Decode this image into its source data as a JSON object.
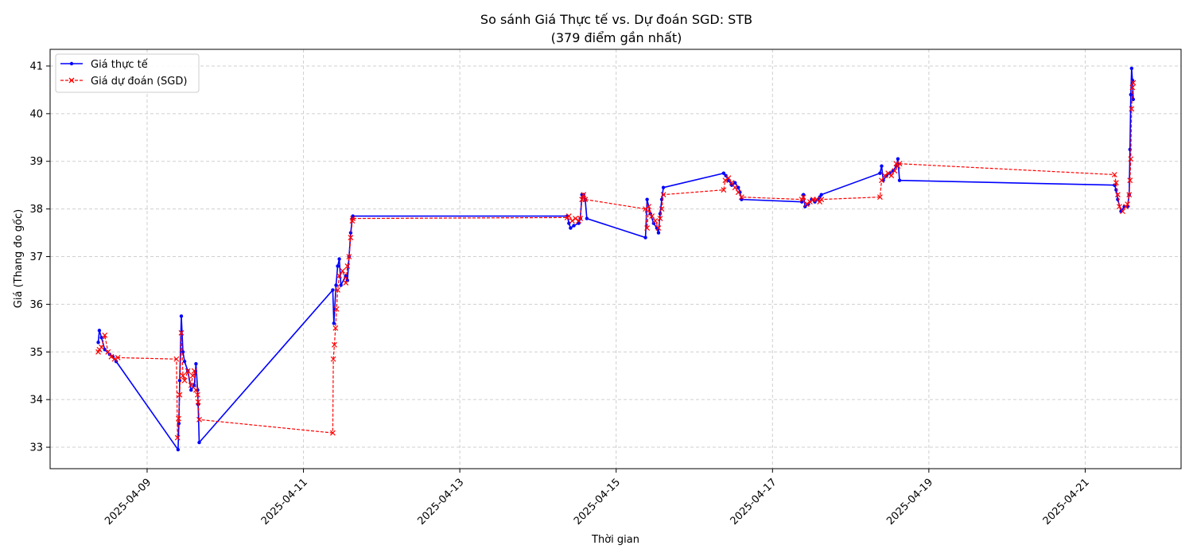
{
  "chart_data": {
    "type": "line",
    "title": "So sánh Giá Thực tế vs. Dự đoán SGD: STB",
    "subtitle": "(379 điểm gần nhất)",
    "xlabel": "Thời gian",
    "ylabel": "Giá (Thang đo gốc)",
    "x_tick_labels": [
      "2025-04-09",
      "2025-04-11",
      "2025-04-13",
      "2025-04-15",
      "2025-04-17",
      "2025-04-19",
      "2025-04-21"
    ],
    "x_tick_dates": [
      "2025-04-09T00:00",
      "2025-04-11T00:00",
      "2025-04-13T00:00",
      "2025-04-15T00:00",
      "2025-04-17T00:00",
      "2025-04-19T00:00",
      "2025-04-21T00:00"
    ],
    "xlim": [
      "2025-04-07T18:13",
      "2025-04-22T05:26"
    ],
    "ylim": [
      32.55,
      41.35
    ],
    "y_ticks": [
      33,
      34,
      35,
      36,
      37,
      38,
      39,
      40,
      41
    ],
    "grid": true,
    "legend_position": "top-left",
    "series": [
      {
        "name": "Giá thực tế",
        "color": "#0000ff",
        "style": "solid",
        "marker": "dot",
        "points": [
          [
            "2025-04-08T09:00",
            35.2
          ],
          [
            "2025-04-08T09:20",
            35.45
          ],
          [
            "2025-04-08T10:00",
            35.3
          ],
          [
            "2025-04-08T11:00",
            35.05
          ],
          [
            "2025-04-08T12:30",
            34.95
          ],
          [
            "2025-04-08T13:30",
            34.9
          ],
          [
            "2025-04-08T14:30",
            34.8
          ],
          [
            "2025-04-09T09:30",
            32.95
          ],
          [
            "2025-04-09T09:45",
            33.5
          ],
          [
            "2025-04-09T10:00",
            34.4
          ],
          [
            "2025-04-09T10:30",
            35.75
          ],
          [
            "2025-04-09T11:00",
            35.0
          ],
          [
            "2025-04-09T11:30",
            34.8
          ],
          [
            "2025-04-09T12:30",
            34.6
          ],
          [
            "2025-04-09T13:30",
            34.2
          ],
          [
            "2025-04-09T14:30",
            34.3
          ],
          [
            "2025-04-09T15:00",
            34.75
          ],
          [
            "2025-04-09T15:30",
            34.2
          ],
          [
            "2025-04-09T15:40",
            33.9
          ],
          [
            "2025-04-09T16:00",
            33.1
          ],
          [
            "2025-04-11T09:00",
            36.3
          ],
          [
            "2025-04-11T09:20",
            35.6
          ],
          [
            "2025-04-11T10:00",
            36.4
          ],
          [
            "2025-04-11T10:30",
            36.8
          ],
          [
            "2025-04-11T11:00",
            36.95
          ],
          [
            "2025-04-11T11:30",
            36.4
          ],
          [
            "2025-04-11T13:00",
            36.6
          ],
          [
            "2025-04-11T13:30",
            36.5
          ],
          [
            "2025-04-11T14:00",
            37.0
          ],
          [
            "2025-04-11T14:30",
            37.5
          ],
          [
            "2025-04-11T15:00",
            37.8
          ],
          [
            "2025-04-11T15:10",
            37.85
          ],
          [
            "2025-04-14T09:00",
            37.85
          ],
          [
            "2025-04-14T09:30",
            37.7
          ],
          [
            "2025-04-14T10:00",
            37.6
          ],
          [
            "2025-04-14T11:00",
            37.65
          ],
          [
            "2025-04-14T12:30",
            37.7
          ],
          [
            "2025-04-14T13:00",
            37.8
          ],
          [
            "2025-04-14T13:30",
            38.3
          ],
          [
            "2025-04-14T14:00",
            38.3
          ],
          [
            "2025-04-14T14:30",
            38.2
          ],
          [
            "2025-04-14T15:00",
            37.8
          ],
          [
            "2025-04-15T09:00",
            37.4
          ],
          [
            "2025-04-15T09:30",
            38.2
          ],
          [
            "2025-04-15T10:30",
            37.9
          ],
          [
            "2025-04-15T11:30",
            37.7
          ],
          [
            "2025-04-15T12:30",
            37.6
          ],
          [
            "2025-04-15T13:00",
            37.5
          ],
          [
            "2025-04-15T13:30",
            37.9
          ],
          [
            "2025-04-15T14:00",
            38.2
          ],
          [
            "2025-04-15T14:30",
            38.45
          ],
          [
            "2025-04-16T09:00",
            38.75
          ],
          [
            "2025-04-16T09:40",
            38.7
          ],
          [
            "2025-04-16T10:30",
            38.6
          ],
          [
            "2025-04-16T11:30",
            38.5
          ],
          [
            "2025-04-16T12:30",
            38.55
          ],
          [
            "2025-04-16T13:30",
            38.45
          ],
          [
            "2025-04-16T14:00",
            38.35
          ],
          [
            "2025-04-16T14:30",
            38.2
          ],
          [
            "2025-04-17T09:00",
            38.15
          ],
          [
            "2025-04-17T09:30",
            38.3
          ],
          [
            "2025-04-17T10:00",
            38.05
          ],
          [
            "2025-04-17T11:00",
            38.1
          ],
          [
            "2025-04-17T12:00",
            38.2
          ],
          [
            "2025-04-17T13:00",
            38.15
          ],
          [
            "2025-04-17T14:00",
            38.2
          ],
          [
            "2025-04-17T14:30",
            38.25
          ],
          [
            "2025-04-17T15:00",
            38.3
          ],
          [
            "2025-04-18T09:00",
            38.75
          ],
          [
            "2025-04-18T09:30",
            38.9
          ],
          [
            "2025-04-18T10:00",
            38.6
          ],
          [
            "2025-04-18T11:00",
            38.7
          ],
          [
            "2025-04-18T12:00",
            38.75
          ],
          [
            "2025-04-18T13:00",
            38.8
          ],
          [
            "2025-04-18T14:00",
            38.9
          ],
          [
            "2025-04-18T14:30",
            39.05
          ],
          [
            "2025-04-18T15:00",
            38.6
          ],
          [
            "2025-04-21T09:00",
            38.5
          ],
          [
            "2025-04-21T09:30",
            38.4
          ],
          [
            "2025-04-21T10:00",
            38.2
          ],
          [
            "2025-04-21T11:00",
            37.95
          ],
          [
            "2025-04-21T12:00",
            38.05
          ],
          [
            "2025-04-21T13:00",
            38.05
          ],
          [
            "2025-04-21T13:30",
            38.3
          ],
          [
            "2025-04-21T13:45",
            39.25
          ],
          [
            "2025-04-21T14:00",
            40.4
          ],
          [
            "2025-04-21T14:15",
            40.95
          ],
          [
            "2025-04-21T14:30",
            40.7
          ],
          [
            "2025-04-21T14:45",
            40.3
          ]
        ]
      },
      {
        "name": "Giá dự đoán (SGD)",
        "color": "#ff0000",
        "style": "dashed",
        "marker": "x",
        "points": [
          [
            "2025-04-08T09:00",
            35.0
          ],
          [
            "2025-04-08T09:20",
            35.05
          ],
          [
            "2025-04-08T10:00",
            35.1
          ],
          [
            "2025-04-08T11:00",
            35.35
          ],
          [
            "2025-04-08T12:00",
            35.0
          ],
          [
            "2025-04-08T13:00",
            34.9
          ],
          [
            "2025-04-08T14:00",
            34.85
          ],
          [
            "2025-04-08T15:00",
            34.88
          ],
          [
            "2025-04-09T09:00",
            34.85
          ],
          [
            "2025-04-09T09:20",
            33.2
          ],
          [
            "2025-04-09T09:40",
            33.6
          ],
          [
            "2025-04-09T10:00",
            34.1
          ],
          [
            "2025-04-09T10:30",
            35.4
          ],
          [
            "2025-04-09T11:00",
            34.5
          ],
          [
            "2025-04-09T11:30",
            34.4
          ],
          [
            "2025-04-09T12:30",
            34.6
          ],
          [
            "2025-04-09T13:30",
            34.3
          ],
          [
            "2025-04-09T14:00",
            34.5
          ],
          [
            "2025-04-09T14:30",
            34.6
          ],
          [
            "2025-04-09T15:00",
            34.2
          ],
          [
            "2025-04-09T15:30",
            34.1
          ],
          [
            "2025-04-09T15:40",
            33.95
          ],
          [
            "2025-04-09T16:00",
            33.58
          ],
          [
            "2025-04-11T09:00",
            33.3
          ],
          [
            "2025-04-11T09:10",
            34.85
          ],
          [
            "2025-04-11T09:30",
            35.15
          ],
          [
            "2025-04-11T09:50",
            35.5
          ],
          [
            "2025-04-11T10:10",
            35.9
          ],
          [
            "2025-04-11T10:30",
            36.3
          ],
          [
            "2025-04-11T11:00",
            36.6
          ],
          [
            "2025-04-11T12:00",
            36.7
          ],
          [
            "2025-04-11T13:00",
            36.45
          ],
          [
            "2025-04-11T13:30",
            36.8
          ],
          [
            "2025-04-11T14:00",
            37.0
          ],
          [
            "2025-04-11T14:30",
            37.4
          ],
          [
            "2025-04-11T15:00",
            37.75
          ],
          [
            "2025-04-11T15:10",
            37.8
          ],
          [
            "2025-04-14T09:00",
            37.82
          ],
          [
            "2025-04-14T09:30",
            37.85
          ],
          [
            "2025-04-14T10:30",
            37.75
          ],
          [
            "2025-04-14T11:30",
            37.8
          ],
          [
            "2025-04-14T12:30",
            37.75
          ],
          [
            "2025-04-14T13:00",
            37.8
          ],
          [
            "2025-04-14T13:30",
            38.2
          ],
          [
            "2025-04-14T14:00",
            38.3
          ],
          [
            "2025-04-14T14:30",
            38.2
          ],
          [
            "2025-04-15T09:00",
            38.0
          ],
          [
            "2025-04-15T09:30",
            37.6
          ],
          [
            "2025-04-15T10:00",
            38.05
          ],
          [
            "2025-04-15T11:00",
            37.85
          ],
          [
            "2025-04-15T12:00",
            37.75
          ],
          [
            "2025-04-15T13:00",
            37.6
          ],
          [
            "2025-04-15T13:30",
            37.8
          ],
          [
            "2025-04-15T14:00",
            38.0
          ],
          [
            "2025-04-15T14:30",
            38.3
          ],
          [
            "2025-04-16T09:00",
            38.4
          ],
          [
            "2025-04-16T09:30",
            38.6
          ],
          [
            "2025-04-16T10:30",
            38.65
          ],
          [
            "2025-04-16T11:30",
            38.55
          ],
          [
            "2025-04-16T12:30",
            38.45
          ],
          [
            "2025-04-16T13:30",
            38.35
          ],
          [
            "2025-04-16T14:30",
            38.25
          ],
          [
            "2025-04-17T09:00",
            38.2
          ],
          [
            "2025-04-17T09:30",
            38.25
          ],
          [
            "2025-04-17T10:30",
            38.1
          ],
          [
            "2025-04-17T11:30",
            38.15
          ],
          [
            "2025-04-17T12:30",
            38.2
          ],
          [
            "2025-04-17T13:30",
            38.2
          ],
          [
            "2025-04-17T14:30",
            38.15
          ],
          [
            "2025-04-17T15:00",
            38.2
          ],
          [
            "2025-04-18T09:00",
            38.25
          ],
          [
            "2025-04-18T09:30",
            38.6
          ],
          [
            "2025-04-18T10:30",
            38.7
          ],
          [
            "2025-04-18T11:30",
            38.75
          ],
          [
            "2025-04-18T12:30",
            38.7
          ],
          [
            "2025-04-18T13:30",
            38.8
          ],
          [
            "2025-04-18T14:00",
            38.95
          ],
          [
            "2025-04-18T14:30",
            38.9
          ],
          [
            "2025-04-18T15:00",
            38.95
          ],
          [
            "2025-04-21T09:00",
            38.72
          ],
          [
            "2025-04-21T09:30",
            38.55
          ],
          [
            "2025-04-21T10:00",
            38.3
          ],
          [
            "2025-04-21T10:30",
            38.05
          ],
          [
            "2025-04-21T11:30",
            37.95
          ],
          [
            "2025-04-21T12:30",
            38.05
          ],
          [
            "2025-04-21T13:00",
            38.1
          ],
          [
            "2025-04-21T13:30",
            38.3
          ],
          [
            "2025-04-21T13:45",
            38.6
          ],
          [
            "2025-04-21T14:00",
            39.05
          ],
          [
            "2025-04-21T14:15",
            40.1
          ],
          [
            "2025-04-21T14:30",
            40.55
          ],
          [
            "2025-04-21T14:45",
            40.65
          ]
        ]
      }
    ]
  }
}
